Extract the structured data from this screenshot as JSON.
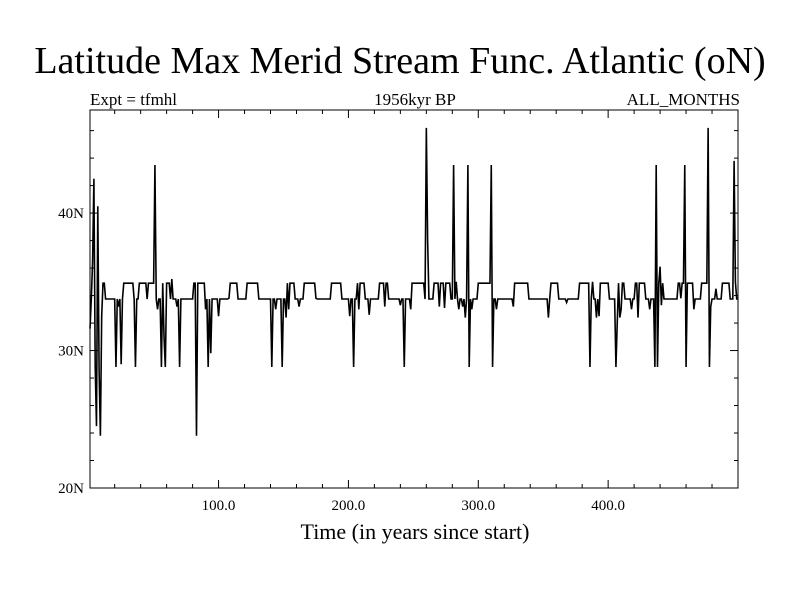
{
  "chart_data": {
    "type": "line",
    "title": "Latitude Max Merid Stream Func. Atlantic (oN)",
    "subtitle_left": "Expt = tfmhl",
    "subtitle_center": "1956kyr BP",
    "subtitle_right": "ALL_MONTHS",
    "xlabel": "Time (in years since start)",
    "ylabel": "",
    "xlim": [
      1,
      500
    ],
    "ylim": [
      20,
      47.5
    ],
    "x_ticks": [
      100,
      200,
      300,
      400
    ],
    "x_tick_labels": [
      "100.0",
      "200.0",
      "300.0",
      "400.0"
    ],
    "y_ticks": [
      20,
      30,
      40
    ],
    "y_tick_labels": [
      "20N",
      "30N",
      "40N"
    ],
    "grid": false,
    "baseline": 33.75,
    "upper_level": 34.9,
    "plateaus": [
      [
        4,
        12
      ],
      [
        27,
        34
      ],
      [
        39,
        44
      ],
      [
        46,
        50
      ],
      [
        56,
        62
      ],
      [
        81,
        90
      ],
      [
        108,
        114
      ],
      [
        122,
        130
      ],
      [
        152,
        158
      ],
      [
        166,
        175
      ],
      [
        187,
        194
      ],
      [
        207,
        212
      ],
      [
        224,
        230
      ],
      [
        248,
        258
      ],
      [
        266,
        278
      ],
      [
        300,
        310
      ],
      [
        328,
        338
      ],
      [
        356,
        361
      ],
      [
        378,
        386
      ],
      [
        394,
        400
      ],
      [
        407,
        412
      ],
      [
        421,
        428
      ],
      [
        436,
        442
      ],
      [
        454,
        466
      ],
      [
        472,
        478
      ],
      [
        488,
        493
      ]
    ],
    "spikes": [
      [
        1,
        31.6
      ],
      [
        3,
        36.5
      ],
      [
        4,
        42.5
      ],
      [
        5,
        28.9
      ],
      [
        6,
        24.5
      ],
      [
        7,
        40.5
      ],
      [
        8,
        28.6
      ],
      [
        9,
        23.8
      ],
      [
        10,
        32.5
      ],
      [
        21,
        28.8
      ],
      [
        23,
        33.2
      ],
      [
        25,
        29.0
      ],
      [
        36,
        28.8
      ],
      [
        51,
        43.5
      ],
      [
        53,
        33
      ],
      [
        56,
        28.8
      ],
      [
        58,
        31.0
      ],
      [
        59,
        28.8
      ],
      [
        64,
        35.2
      ],
      [
        68,
        33.2
      ],
      [
        70,
        28.8
      ],
      [
        83,
        23.8
      ],
      [
        90,
        33.0
      ],
      [
        92,
        28.8
      ],
      [
        94,
        29.8
      ],
      [
        100,
        32.5
      ],
      [
        108,
        33.8
      ],
      [
        141,
        28.8
      ],
      [
        144,
        33.0
      ],
      [
        149,
        28.8
      ],
      [
        152,
        32.4
      ],
      [
        154,
        33.0
      ],
      [
        162,
        33.2
      ],
      [
        175,
        33.8
      ],
      [
        201,
        32.5
      ],
      [
        204,
        28.8
      ],
      [
        208,
        33.0
      ],
      [
        216,
        32.6
      ],
      [
        228,
        33.2
      ],
      [
        240,
        33.3
      ],
      [
        243,
        28.8
      ],
      [
        248,
        33.0
      ],
      [
        260,
        46.2
      ],
      [
        261,
        38
      ],
      [
        270,
        33.2
      ],
      [
        274,
        33.1
      ],
      [
        281,
        43.5
      ],
      [
        283,
        35
      ],
      [
        285,
        33.0
      ],
      [
        288,
        33.2
      ],
      [
        290,
        32.4
      ],
      [
        292,
        43.5
      ],
      [
        293,
        28.8
      ],
      [
        295,
        33
      ],
      [
        310,
        43.5
      ],
      [
        311,
        28.8
      ],
      [
        314,
        33.0
      ],
      [
        327,
        33.2
      ],
      [
        354,
        32.4
      ],
      [
        368,
        33.5
      ],
      [
        386,
        28.8
      ],
      [
        388,
        35
      ],
      [
        391,
        32.4
      ],
      [
        393,
        32.5
      ],
      [
        406,
        28.8
      ],
      [
        407,
        32.0
      ],
      [
        409,
        32.4
      ],
      [
        410,
        33.0
      ],
      [
        418,
        33.0
      ],
      [
        423,
        32.4
      ],
      [
        432,
        33.0
      ],
      [
        436,
        28.8
      ],
      [
        437,
        43.5
      ],
      [
        438,
        28.8
      ],
      [
        440,
        36.1
      ],
      [
        441,
        33.3
      ],
      [
        456,
        33.8
      ],
      [
        459,
        43.5
      ],
      [
        460,
        28.8
      ],
      [
        466,
        33.0
      ],
      [
        477,
        46.2
      ],
      [
        478,
        28.8
      ],
      [
        479,
        33.2
      ],
      [
        483,
        34.5
      ],
      [
        497,
        43.8
      ],
      [
        498,
        35.0
      ]
    ],
    "line_color": "#000000"
  }
}
